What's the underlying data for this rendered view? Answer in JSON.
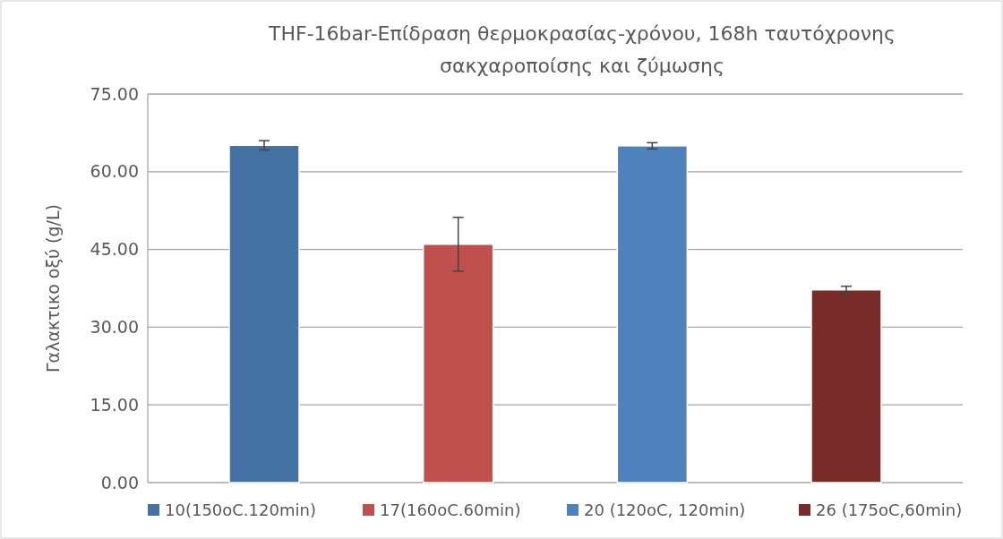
{
  "chart_data": {
    "type": "bar",
    "title": "THF-16bar-Επίδραση θερμοκρασίας-χρόνου, 168h ταυτόχρονης σακχαροποίσης και ζύμωσης",
    "ylabel": "Γαλακτικο οξύ (g/L)",
    "categories": [
      null
    ],
    "series": [
      {
        "name": "10(150oC.120min)",
        "color": "#4472a4",
        "values": [
          65.1
        ],
        "errors": [
          0.9
        ]
      },
      {
        "name": "17(160oC.60min)",
        "color": "#c0504d",
        "values": [
          46.0
        ],
        "errors": [
          5.2
        ]
      },
      {
        "name": "20 (120oC, 120min)",
        "color": "#4f81bd",
        "values": [
          65.0
        ],
        "errors": [
          0.6
        ]
      },
      {
        "name": "26 (175oC,60min)",
        "color": "#772c2a",
        "values": [
          37.2
        ],
        "errors": [
          0.7
        ]
      }
    ],
    "ylim": [
      0,
      75
    ],
    "yticks": [
      {
        "value": 0,
        "label": "0.00"
      },
      {
        "value": 15,
        "label": "15.00"
      },
      {
        "value": 30,
        "label": "30.00"
      },
      {
        "value": 45,
        "label": "45.00"
      },
      {
        "value": 60,
        "label": "60.00"
      },
      {
        "value": 75,
        "label": "75.00"
      }
    ],
    "grid": "y",
    "legend": "bottom"
  }
}
